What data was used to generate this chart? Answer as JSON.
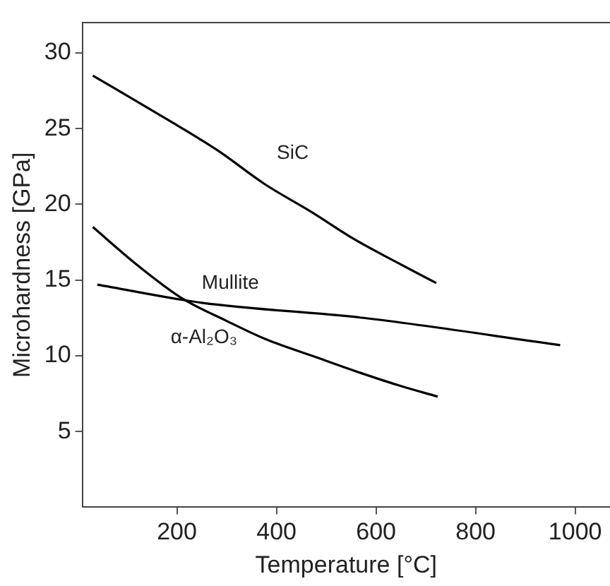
{
  "chart_data": {
    "type": "line",
    "xlabel": "Temperature [°C]",
    "ylabel": "Microhardness [GPa]",
    "xlim": [
      10,
      1070
    ],
    "xticks": [
      200,
      400,
      600,
      800,
      1000
    ],
    "ylim": [
      0,
      32
    ],
    "yticks": [
      5,
      10,
      15,
      20,
      25,
      30
    ],
    "grid": false,
    "legend": false,
    "marker": "none",
    "line_style": "solid",
    "series": [
      {
        "name": "SiC",
        "color": "#000000",
        "x": [
          31,
          150,
          280,
          378,
          470,
          556,
          640,
          721
        ],
        "values": [
          28.5,
          26.2,
          23.6,
          21.3,
          19.5,
          17.7,
          16.2,
          14.8
        ]
      },
      {
        "name": "Mullite",
        "color": "#000000",
        "x": [
          40,
          250,
          575,
          970
        ],
        "values": [
          14.7,
          13.5,
          12.5,
          10.7
        ]
      },
      {
        "name": "α-Al₂O₃",
        "color": "#000000",
        "x": [
          31,
          120,
          210,
          300,
          378,
          480,
          575,
          650,
          724
        ],
        "values": [
          18.5,
          16.0,
          13.8,
          12.3,
          11.1,
          9.9,
          8.8,
          8.0,
          7.3
        ]
      }
    ]
  }
}
